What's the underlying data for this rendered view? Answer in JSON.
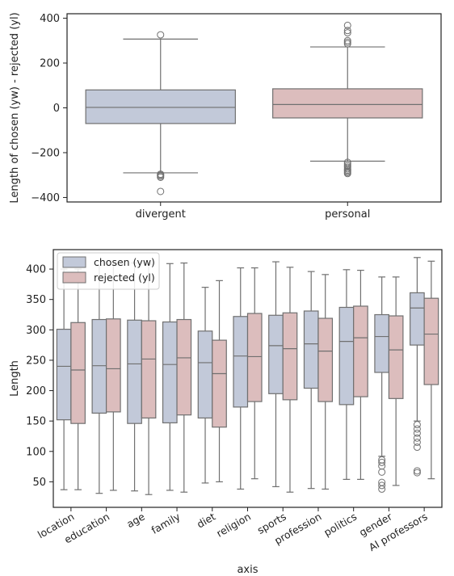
{
  "colors": {
    "chosen": "#c2c9d9",
    "rejected": "#dcbdbd",
    "edge": "#707070",
    "axis": "#222222"
  },
  "chart_data": [
    {
      "type": "box",
      "ylabel": "Length of chosen (yw) - rejected (yl)",
      "xlabel": "",
      "ylim": [
        -420,
        420
      ],
      "yticks": [
        -400,
        -200,
        0,
        200,
        400
      ],
      "categories": [
        "divergent",
        "personal"
      ],
      "boxes": [
        {
          "category": "divergent",
          "series": "chosen (yw)",
          "whislo": -290,
          "q1": -70,
          "med": 2,
          "q3": 80,
          "whishi": 307,
          "fliers": [
            -373,
            -310,
            -305,
            -300,
            -296,
            326
          ]
        },
        {
          "category": "personal",
          "series": "rejected (yl)",
          "whislo": -238,
          "q1": -45,
          "med": 15,
          "q3": 85,
          "whishi": 272,
          "fliers": [
            -293,
            -288,
            -283,
            -278,
            -272,
            -265,
            -258,
            -250,
            -243,
            286,
            293,
            300,
            335,
            345,
            368
          ]
        }
      ]
    },
    {
      "type": "box",
      "xlabel": "axis",
      "ylabel": "Length",
      "ylim": [
        8,
        432
      ],
      "yticks": [
        50,
        100,
        150,
        200,
        250,
        300,
        350,
        400
      ],
      "legend": {
        "position": "top-left",
        "entries": [
          "chosen (yw)",
          "rejected (yl)"
        ]
      },
      "categories": [
        "location",
        "education",
        "age",
        "family",
        "diet",
        "religion",
        "sports",
        "profession",
        "politics",
        "gender",
        "AI professors"
      ],
      "series": [
        {
          "name": "chosen (yw)",
          "boxes": [
            {
              "whislo": 37,
              "q1": 152,
              "med": 240,
              "q3": 301,
              "whishi": 400,
              "fliers": []
            },
            {
              "whislo": 31,
              "q1": 163,
              "med": 241,
              "q3": 317,
              "whishi": 406,
              "fliers": []
            },
            {
              "whislo": 35,
              "q1": 146,
              "med": 244,
              "q3": 316,
              "whishi": 410,
              "fliers": []
            },
            {
              "whislo": 36,
              "q1": 147,
              "med": 243,
              "q3": 313,
              "whishi": 409,
              "fliers": []
            },
            {
              "whislo": 48,
              "q1": 155,
              "med": 246,
              "q3": 298,
              "whishi": 370,
              "fliers": []
            },
            {
              "whislo": 38,
              "q1": 173,
              "med": 257,
              "q3": 322,
              "whishi": 402,
              "fliers": []
            },
            {
              "whislo": 42,
              "q1": 195,
              "med": 274,
              "q3": 324,
              "whishi": 412,
              "fliers": []
            },
            {
              "whislo": 39,
              "q1": 204,
              "med": 277,
              "q3": 331,
              "whishi": 396,
              "fliers": []
            },
            {
              "whislo": 54,
              "q1": 177,
              "med": 281,
              "q3": 337,
              "whishi": 399,
              "fliers": []
            },
            {
              "whislo": 92,
              "q1": 230,
              "med": 289,
              "q3": 325,
              "whishi": 387,
              "fliers": [
                38,
                44,
                49,
                66,
                76,
                82,
                86
              ]
            },
            {
              "whislo": 150,
              "q1": 275,
              "med": 336,
              "q3": 361,
              "whishi": 419,
              "fliers": [
                65,
                68,
                107,
                115,
                122,
                130,
                137,
                144
              ]
            }
          ]
        },
        {
          "name": "rejected (yl)",
          "boxes": [
            {
              "whislo": 37,
              "q1": 146,
              "med": 234,
              "q3": 312,
              "whishi": 400,
              "fliers": []
            },
            {
              "whislo": 36,
              "q1": 165,
              "med": 236,
              "q3": 318,
              "whishi": 407,
              "fliers": []
            },
            {
              "whislo": 29,
              "q1": 155,
              "med": 252,
              "q3": 315,
              "whishi": 408,
              "fliers": []
            },
            {
              "whislo": 33,
              "q1": 160,
              "med": 254,
              "q3": 317,
              "whishi": 410,
              "fliers": []
            },
            {
              "whislo": 50,
              "q1": 140,
              "med": 228,
              "q3": 283,
              "whishi": 381,
              "fliers": []
            },
            {
              "whislo": 55,
              "q1": 182,
              "med": 256,
              "q3": 327,
              "whishi": 402,
              "fliers": []
            },
            {
              "whislo": 33,
              "q1": 185,
              "med": 269,
              "q3": 328,
              "whishi": 403,
              "fliers": []
            },
            {
              "whislo": 38,
              "q1": 182,
              "med": 265,
              "q3": 319,
              "whishi": 391,
              "fliers": []
            },
            {
              "whislo": 54,
              "q1": 190,
              "med": 287,
              "q3": 339,
              "whishi": 398,
              "fliers": []
            },
            {
              "whislo": 44,
              "q1": 187,
              "med": 267,
              "q3": 323,
              "whishi": 387,
              "fliers": []
            },
            {
              "whislo": 55,
              "q1": 210,
              "med": 293,
              "q3": 352,
              "whishi": 413,
              "fliers": []
            }
          ]
        }
      ]
    }
  ]
}
